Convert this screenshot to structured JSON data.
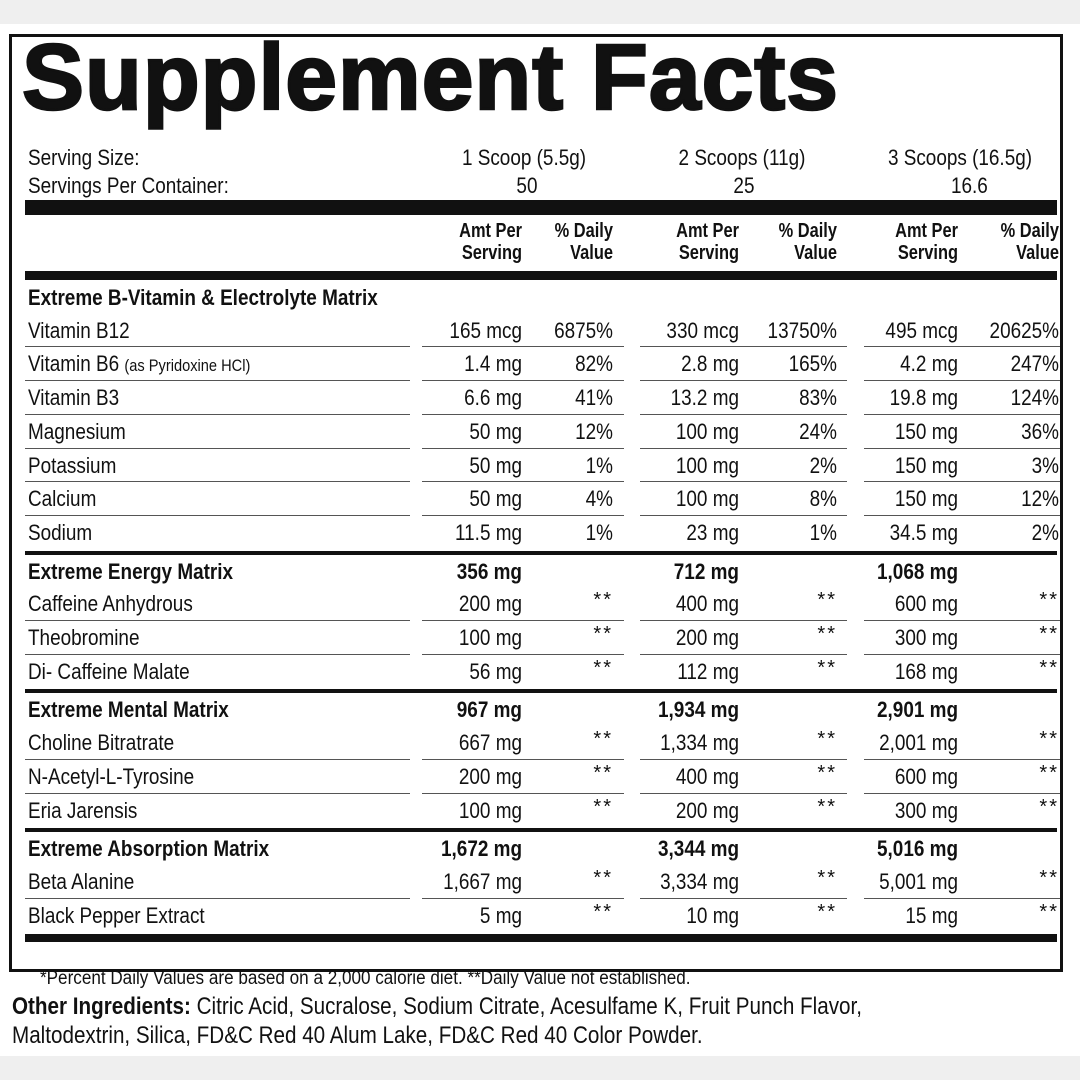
{
  "title": "Supplement Facts",
  "serving": {
    "size_label": "Serving Size:",
    "per_container_label": "Servings Per Container:",
    "sizes": [
      "1 Scoop (5.5g)",
      "2 Scoops (11g)",
      "3 Scoops (16.5g)"
    ],
    "per_container": [
      "50",
      "25",
      "16.6"
    ]
  },
  "columns": {
    "amt": "Amt Per\nServing",
    "dv": "% Daily\nValue"
  },
  "sections": [
    {
      "name": "Extreme B-Vitamin & Electrolyte Matrix",
      "totals": null,
      "rows": [
        {
          "name": "Vitamin B12",
          "note": "",
          "v": [
            "165 mcg",
            "6875%",
            "330 mcg",
            "13750%",
            "495 mcg",
            "20625%"
          ]
        },
        {
          "name": "Vitamin B6",
          "note": "(as Pyridoxine HCl)",
          "v": [
            "1.4 mg",
            "82%",
            "2.8 mg",
            "165%",
            "4.2 mg",
            "247%"
          ]
        },
        {
          "name": "Vitamin B3",
          "note": "",
          "v": [
            "6.6 mg",
            "41%",
            "13.2 mg",
            "83%",
            "19.8 mg",
            "124%"
          ]
        },
        {
          "name": "Magnesium",
          "note": "",
          "v": [
            "50 mg",
            "12%",
            "100 mg",
            "24%",
            "150 mg",
            "36%"
          ]
        },
        {
          "name": "Potassium",
          "note": "",
          "v": [
            "50 mg",
            "1%",
            "100 mg",
            "2%",
            "150 mg",
            "3%"
          ]
        },
        {
          "name": "Calcium",
          "note": "",
          "v": [
            "50 mg",
            "4%",
            "100 mg",
            "8%",
            "150 mg",
            "12%"
          ]
        },
        {
          "name": "Sodium",
          "note": "",
          "v": [
            "11.5 mg",
            "1%",
            "23 mg",
            "1%",
            "34.5 mg",
            "2%"
          ]
        }
      ]
    },
    {
      "name": "Extreme Energy Matrix",
      "totals": [
        "356 mg",
        "712 mg",
        "1,068 mg"
      ],
      "rows": [
        {
          "name": "Caffeine Anhydrous",
          "note": "",
          "v": [
            "200 mg",
            "**",
            "400 mg",
            "**",
            "600 mg",
            "**"
          ]
        },
        {
          "name": "Theobromine",
          "note": "",
          "v": [
            "100 mg",
            "**",
            "200 mg",
            "**",
            "300 mg",
            "**"
          ]
        },
        {
          "name": "Di- Caffeine Malate",
          "note": "",
          "v": [
            "56 mg",
            "**",
            "112 mg",
            "**",
            "168 mg",
            "**"
          ]
        }
      ]
    },
    {
      "name": "Extreme Mental Matrix",
      "totals": [
        "967 mg",
        "1,934 mg",
        "2,901 mg"
      ],
      "rows": [
        {
          "name": "Choline Bitratrate",
          "note": "",
          "v": [
            "667 mg",
            "**",
            "1,334 mg",
            "**",
            "2,001 mg",
            "**"
          ]
        },
        {
          "name": "N-Acetyl-L-Tyrosine",
          "note": "",
          "v": [
            "200 mg",
            "**",
            "400 mg",
            "**",
            "600 mg",
            "**"
          ]
        },
        {
          "name": "Eria Jarensis",
          "note": "",
          "v": [
            "100 mg",
            "**",
            "200 mg",
            "**",
            "300 mg",
            "**"
          ]
        }
      ]
    },
    {
      "name": "Extreme Absorption Matrix",
      "totals": [
        "1,672 mg",
        "3,344 mg",
        "5,016 mg"
      ],
      "rows": [
        {
          "name": "Beta Alanine",
          "note": "",
          "v": [
            "1,667 mg",
            "**",
            "3,334 mg",
            "**",
            "5,001 mg",
            "**"
          ]
        },
        {
          "name": "Black Pepper Extract",
          "note": "",
          "v": [
            "5 mg",
            "**",
            "10 mg",
            "**",
            "15 mg",
            "**"
          ]
        }
      ]
    }
  ],
  "footnote": "*Percent Daily Values are based on a 2,000 calorie diet. **Daily Value not established.",
  "other_ingredients": {
    "label": "Other Ingredients:",
    "line1": "Citric Acid, Sucralose, Sodium Citrate, Acesulfame K, Fruit Punch Flavor,",
    "line2": "Maltodextrin, Silica, FD&C Red 40 Alum Lake, FD&C Red 40 Color Powder."
  }
}
